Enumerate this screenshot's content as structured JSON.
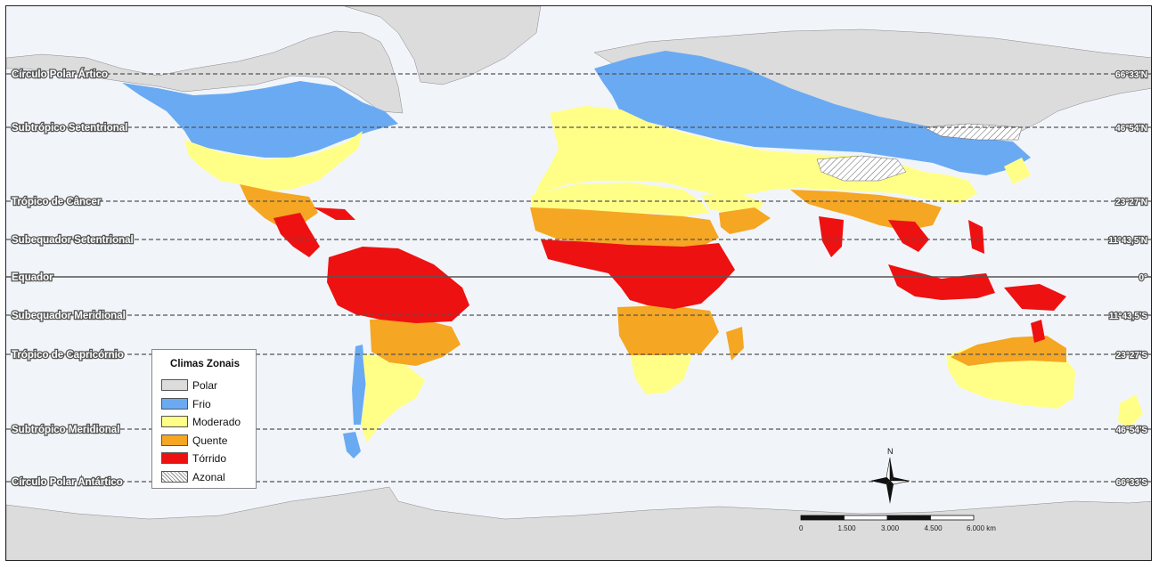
{
  "legend": {
    "title": "Climas Zonais",
    "items": [
      {
        "label": "Polar",
        "color": "#dcdcdc",
        "pattern": false
      },
      {
        "label": "Frio",
        "color": "#6aaaf2",
        "pattern": false
      },
      {
        "label": "Moderado",
        "color": "#ffff88",
        "pattern": false
      },
      {
        "label": "Quente",
        "color": "#f5a623",
        "pattern": false
      },
      {
        "label": "Tórrido",
        "color": "#ee1111",
        "pattern": false
      },
      {
        "label": "Azonal",
        "color": "#ffffff",
        "pattern": true
      }
    ]
  },
  "latitude_lines": [
    {
      "name": "Círculo Polar Ártico",
      "degree": "66°33'N",
      "style": "dashed"
    },
    {
      "name": "Subtrópico Setentrional",
      "degree": "46°54'N",
      "style": "dashed"
    },
    {
      "name": "Trópico de Câncer",
      "degree": "23°27'N",
      "style": "dashed"
    },
    {
      "name": "Subequador Setentrional",
      "degree": "11°43,5'N",
      "style": "dashed"
    },
    {
      "name": "Equador",
      "degree": "0°",
      "style": "solid"
    },
    {
      "name": "Subequador Meridional",
      "degree": "11°43,5'S",
      "style": "dashed"
    },
    {
      "name": "Trópico de Capricórnio",
      "degree": "23°27'S",
      "style": "dashed"
    },
    {
      "name": "Subtrópico Meridional",
      "degree": "46°54'S",
      "style": "dashed"
    },
    {
      "name": "Círculo Polar Antártico",
      "degree": "66°33'S",
      "style": "dashed"
    }
  ],
  "scale_bar": {
    "ticks": [
      "0",
      "1.500",
      "3.000",
      "4.500",
      "6.000 km"
    ]
  },
  "north_arrow": {
    "label": "N"
  },
  "colors": {
    "ocean": "#f1f5fa",
    "polar": "#dcdcdc",
    "frio": "#6aaaf2",
    "moderado": "#ffff88",
    "quente": "#f5a623",
    "torrido": "#ee1111"
  }
}
